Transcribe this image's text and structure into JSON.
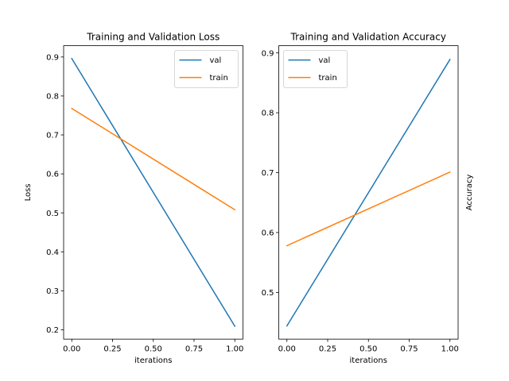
{
  "chart_data": [
    {
      "type": "line",
      "title": "Training and Validation Loss",
      "xlabel": "iterations",
      "ylabel": "Loss",
      "ylabel_side": "left",
      "xlim": [
        -0.05,
        1.05
      ],
      "ylim": [
        0.176,
        0.929
      ],
      "xticks": [
        0.0,
        0.25,
        0.5,
        0.75,
        1.0
      ],
      "xtick_labels": [
        "0.00",
        "0.25",
        "0.50",
        "0.75",
        "1.00"
      ],
      "yticks": [
        0.2,
        0.3,
        0.4,
        0.5,
        0.6,
        0.7,
        0.8,
        0.9
      ],
      "ytick_labels": [
        "0.2",
        "0.3",
        "0.4",
        "0.5",
        "0.6",
        "0.7",
        "0.8",
        "0.9"
      ],
      "grid": false,
      "legend": "upper right",
      "series": [
        {
          "name": "val",
          "color": "#1f77b4",
          "x": [
            0,
            1
          ],
          "y": [
            0.896,
            0.209
          ]
        },
        {
          "name": "train",
          "color": "#ff7f0e",
          "x": [
            0,
            1
          ],
          "y": [
            0.768,
            0.508
          ]
        }
      ]
    },
    {
      "type": "line",
      "title": "Training and Validation Accuracy",
      "xlabel": "iterations",
      "ylabel": "Accuracy",
      "ylabel_side": "right",
      "xlim": [
        -0.05,
        1.05
      ],
      "ylim": [
        0.422,
        0.912
      ],
      "xticks": [
        0.0,
        0.25,
        0.5,
        0.75,
        1.0
      ],
      "xtick_labels": [
        "0.00",
        "0.25",
        "0.50",
        "0.75",
        "1.00"
      ],
      "yticks": [
        0.5,
        0.6,
        0.7,
        0.8,
        0.9
      ],
      "ytick_labels": [
        "0.5",
        "0.6",
        "0.7",
        "0.8",
        "0.9"
      ],
      "grid": false,
      "legend": "upper left",
      "series": [
        {
          "name": "val",
          "color": "#1f77b4",
          "x": [
            0,
            1
          ],
          "y": [
            0.444,
            0.889
          ]
        },
        {
          "name": "train",
          "color": "#ff7f0e",
          "x": [
            0,
            1
          ],
          "y": [
            0.578,
            0.701
          ]
        }
      ]
    }
  ]
}
